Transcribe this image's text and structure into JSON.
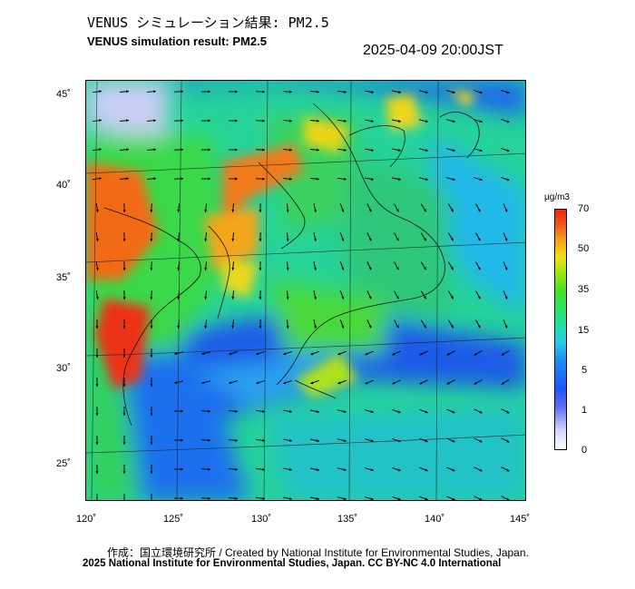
{
  "header": {
    "title_ja": "VENUS シミュレーション結果: PM2.5",
    "title_en": "VENUS simulation result: PM2.5",
    "timestamp": "2025-04-09 20:00JST"
  },
  "map": {
    "lon_range": [
      120,
      145
    ],
    "lat_range": [
      23,
      46
    ],
    "x_ticks": [
      "120˚",
      "125˚",
      "130˚",
      "135˚",
      "140˚",
      "145˚"
    ],
    "y_ticks": [
      "45˚",
      "40˚",
      "35˚",
      "30˚",
      "25˚"
    ],
    "field": "PM2.5 concentration with wind vectors"
  },
  "colorbar": {
    "unit": "µg/m3",
    "labels": [
      "70",
      "50",
      "35",
      "15",
      "5",
      "1",
      "0"
    ]
  },
  "colors": {
    "low": "#ffffff",
    "blue": "#1f55ff",
    "cyan": "#27cfe0",
    "green": "#2fe25a",
    "yellow": "#f2e016",
    "red": "#e82612"
  },
  "footer": {
    "credit_line": "作成：国立環境研究所 / Created by National Institute for Environmental Studies, Japan.",
    "copyright_line": "2025 National Institute for Environmental Studies, Japan. CC BY-NC 4.0 International"
  }
}
